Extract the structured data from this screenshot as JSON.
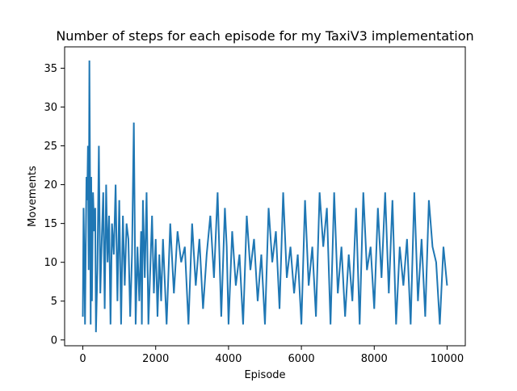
{
  "chart_data": {
    "type": "line",
    "title": "Number of steps for each episode for my TaxiV3 implementation",
    "xlabel": "Episode",
    "ylabel": "Movements",
    "xlim": [
      -500,
      10500
    ],
    "ylim": [
      -0.75,
      37.75
    ],
    "xticks": [
      0,
      2000,
      4000,
      6000,
      8000,
      10000
    ],
    "yticks": [
      0,
      5,
      10,
      15,
      20,
      25,
      30,
      35
    ],
    "grid": false,
    "legend": "none",
    "line_color": "#1f77b4",
    "series": [
      {
        "x": [
          0,
          20,
          40,
          60,
          80,
          100,
          120,
          140,
          160,
          180,
          200,
          215,
          230,
          250,
          280,
          310,
          340,
          360,
          400,
          440,
          480,
          520,
          560,
          600,
          640,
          680,
          720,
          760,
          800,
          850,
          900,
          950,
          1000,
          1050,
          1100,
          1150,
          1200,
          1250,
          1300,
          1350,
          1400,
          1450,
          1500,
          1550,
          1600,
          1620,
          1650,
          1700,
          1750,
          1800,
          1900,
          1950,
          2000,
          2050,
          2100,
          2150,
          2200,
          2300,
          2400,
          2500,
          2600,
          2700,
          2800,
          2900,
          3000,
          3100,
          3200,
          3300,
          3400,
          3500,
          3600,
          3700,
          3800,
          3900,
          3950,
          4000,
          4100,
          4200,
          4300,
          4400,
          4500,
          4600,
          4700,
          4800,
          4900,
          5000,
          5100,
          5200,
          5300,
          5400,
          5500,
          5600,
          5700,
          5800,
          5900,
          6000,
          6100,
          6200,
          6300,
          6400,
          6500,
          6600,
          6700,
          6800,
          6900,
          7000,
          7100,
          7200,
          7300,
          7400,
          7500,
          7600,
          7700,
          7800,
          7900,
          8000,
          8100,
          8200,
          8300,
          8400,
          8500,
          8600,
          8700,
          8800,
          8900,
          9000,
          9100,
          9200,
          9300,
          9400,
          9500,
          9600,
          9700,
          9800,
          9900,
          10000
        ],
        "values": [
          3,
          17,
          11,
          2,
          12,
          21,
          18,
          25,
          9,
          36,
          19,
          2,
          21,
          5,
          19,
          14,
          17,
          1,
          9,
          25,
          6,
          13,
          19,
          4,
          20,
          10,
          16,
          2,
          15,
          11,
          20,
          5,
          18,
          2,
          16,
          7,
          15,
          13,
          3,
          11,
          28,
          2,
          12,
          5,
          14,
          2,
          18,
          8,
          19,
          2,
          16,
          6,
          13,
          3,
          11,
          5,
          13,
          2,
          15,
          6,
          14,
          10,
          12,
          2,
          15,
          7,
          13,
          4,
          11,
          16,
          8,
          19,
          3,
          17,
          12,
          2,
          14,
          7,
          11,
          2,
          16,
          9,
          13,
          5,
          11,
          2,
          17,
          10,
          14,
          4,
          19,
          8,
          12,
          6,
          11,
          2,
          18,
          7,
          12,
          3,
          19,
          12,
          17,
          2,
          19,
          6,
          12,
          3,
          11,
          5,
          17,
          2,
          19,
          9,
          12,
          4,
          17,
          8,
          19,
          6,
          18,
          2,
          12,
          7,
          13,
          2,
          19,
          5,
          13,
          3,
          18,
          12,
          10,
          2,
          12,
          7
        ]
      }
    ]
  }
}
